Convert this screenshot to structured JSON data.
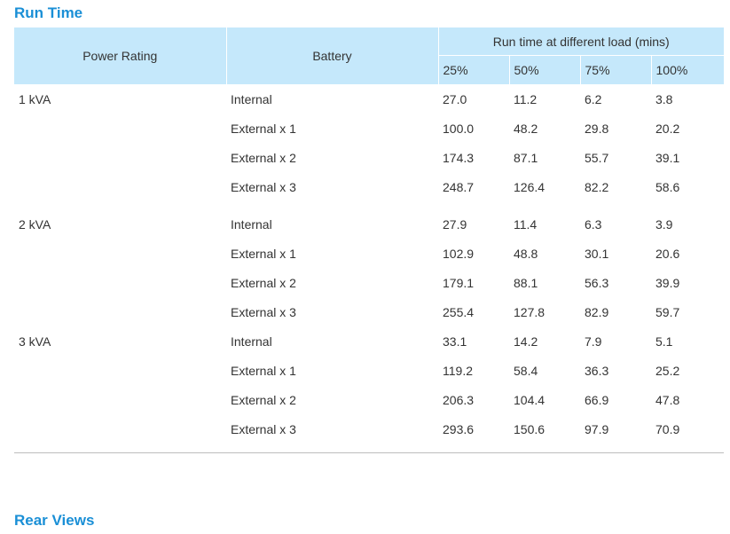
{
  "sections": {
    "run_time_title": "Run Time",
    "rear_views_title": "Rear Views"
  },
  "table": {
    "headers": {
      "power_rating": "Power Rating",
      "battery": "Battery",
      "load_group": "Run time at different load (mins)",
      "loads": [
        "25%",
        "50%",
        "75%",
        "100%"
      ]
    },
    "groups": [
      {
        "power": "1 kVA",
        "rows": [
          {
            "battery": "Internal",
            "values": [
              "27.0",
              "11.2",
              "6.2",
              "3.8"
            ]
          },
          {
            "battery": "External x 1",
            "values": [
              "100.0",
              "48.2",
              "29.8",
              "20.2"
            ]
          },
          {
            "battery": "External x 2",
            "values": [
              "174.3",
              "87.1",
              "55.7",
              "39.1"
            ]
          },
          {
            "battery": "External x 3",
            "values": [
              "248.7",
              "126.4",
              "82.2",
              "58.6"
            ]
          }
        ]
      },
      {
        "power": "2 kVA",
        "rows": [
          {
            "battery": "Internal",
            "values": [
              "27.9",
              "11.4",
              "6.3",
              "3.9"
            ]
          },
          {
            "battery": "External x 1",
            "values": [
              "102.9",
              "48.8",
              "30.1",
              "20.6"
            ]
          },
          {
            "battery": "External x 2",
            "values": [
              "179.1",
              "88.1",
              "56.3",
              "39.9"
            ]
          },
          {
            "battery": "External x 3",
            "values": [
              "255.4",
              "127.8",
              "82.9",
              "59.7"
            ]
          }
        ]
      },
      {
        "power": "3 kVA",
        "rows": [
          {
            "battery": "Internal",
            "values": [
              "33.1",
              "14.2",
              "7.9",
              "5.1"
            ]
          },
          {
            "battery": "External x 1",
            "values": [
              "119.2",
              "58.4",
              "36.3",
              "25.2"
            ]
          },
          {
            "battery": "External x 2",
            "values": [
              "206.3",
              "104.4",
              "66.9",
              "47.8"
            ]
          },
          {
            "battery": "External x 3",
            "values": [
              "293.6",
              "150.6",
              "97.9",
              "70.9"
            ]
          }
        ]
      }
    ]
  },
  "colors": {
    "title": "#1a8fd6",
    "header_bg": "#c5e8fb",
    "text": "#333333",
    "rule": "#bdbdbd"
  }
}
